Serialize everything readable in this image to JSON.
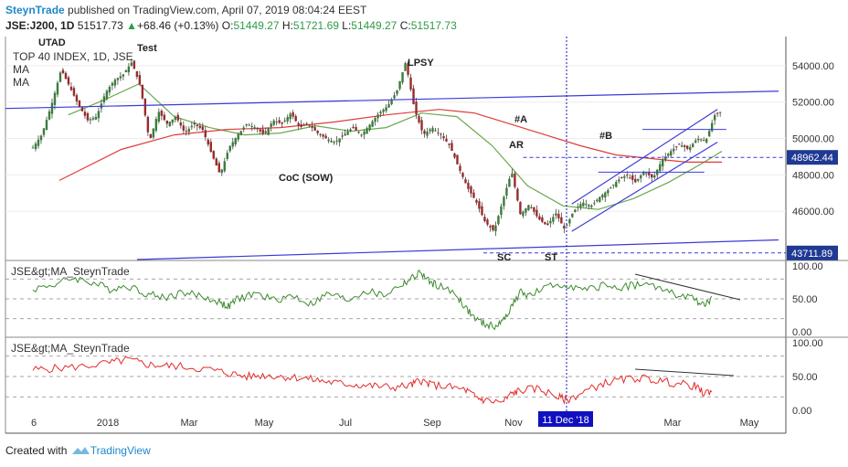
{
  "header": {
    "user": "SteynTrade",
    "published": "published on TradingView.com, April 07, 2019 08:04:24 EEST",
    "symbol": "JSE:J200, 1D",
    "last": "51517.73",
    "change": "+68.46 (+0.13%)",
    "o_label": "O:",
    "o_value": "51449.27",
    "h_label": "H:",
    "h_value": "51721.69",
    "l_label": "L:",
    "l_value": "51449.27",
    "c_label": "C:",
    "c_value": "51517.73"
  },
  "legend": {
    "title": "TOP 40 INDEX, 1D, JSE",
    "ma1": "MA",
    "ma2": "MA"
  },
  "footer": {
    "created_with": "Created with",
    "brand": "TradingView"
  },
  "colors": {
    "candle_up": "#3a7d3a",
    "candle_down": "#9b2a2a",
    "ma_fast": "#6aa84f",
    "ma_slow": "#e03c3c",
    "trendline": "#3b3bd6",
    "osc1": "#3d8a2e",
    "osc2": "#e52b2b",
    "cursor": "#1010c0",
    "price_box": "#1f3a93"
  },
  "chart_data": [
    {
      "type": "candlestick",
      "title": "TOP 40 INDEX, 1D, JSE",
      "y_ticks": [
        46000,
        48000,
        50000,
        52000,
        54000
      ],
      "y_tick_labels": [
        "46000.00",
        "48000.00",
        "50000.00",
        "52000.00",
        "54000.00"
      ],
      "ylim": [
        43300,
        55600
      ],
      "x_ticks": [
        "6",
        "2018",
        "Mar",
        "May",
        "Jul",
        "Sep",
        "Nov",
        "11 Dec '18",
        "Mar",
        "May"
      ],
      "price_labels": [
        "48962.44",
        "43711.89"
      ],
      "annotations": [
        "UTAD",
        "Test",
        "LPSY",
        "#A",
        "AR",
        "#B",
        "CoC (SOW)",
        "SC",
        "ST"
      ],
      "series": [
        {
          "name": "Price",
          "path": [
            [
              0,
              49500
            ],
            [
              10,
              50200
            ],
            [
              22,
              52000
            ],
            [
              32,
              53800
            ],
            [
              42,
              52800
            ],
            [
              52,
              51800
            ],
            [
              62,
              51000
            ],
            [
              72,
              51200
            ],
            [
              82,
              52500
            ],
            [
              92,
              53200
            ],
            [
              102,
              53500
            ],
            [
              112,
              54200
            ],
            [
              122,
              52800
            ],
            [
              132,
              49800
            ],
            [
              142,
              51500
            ],
            [
              152,
              50800
            ],
            [
              162,
              51200
            ],
            [
              172,
              50300
            ],
            [
              182,
              50800
            ],
            [
              192,
              50500
            ],
            [
              202,
              49200
            ],
            [
              212,
              48000
            ],
            [
              222,
              49500
            ],
            [
              232,
              50200
            ],
            [
              242,
              50800
            ],
            [
              252,
              50600
            ],
            [
              262,
              50200
            ],
            [
              272,
              51000
            ],
            [
              282,
              50800
            ],
            [
              292,
              51400
            ],
            [
              302,
              50600
            ],
            [
              312,
              50800
            ],
            [
              322,
              50300
            ],
            [
              332,
              50000
            ],
            [
              342,
              49800
            ],
            [
              352,
              50200
            ],
            [
              362,
              50600
            ],
            [
              372,
              50200
            ],
            [
              382,
              50800
            ],
            [
              392,
              51400
            ],
            [
              402,
              51800
            ],
            [
              412,
              52600
            ],
            [
              422,
              54200
            ],
            [
              432,
              51600
            ],
            [
              442,
              50200
            ],
            [
              452,
              50600
            ],
            [
              462,
              50200
            ],
            [
              472,
              49600
            ],
            [
              482,
              48400
            ],
            [
              492,
              47300
            ],
            [
              502,
              46500
            ],
            [
              512,
              45400
            ],
            [
              522,
              44900
            ],
            [
              532,
              46600
            ],
            [
              542,
              48200
            ],
            [
              552,
              45800
            ],
            [
              562,
              46400
            ],
            [
              572,
              45600
            ],
            [
              582,
              45200
            ],
            [
              592,
              45900
            ],
            [
              602,
              45000
            ],
            [
              612,
              46000
            ],
            [
              622,
              46500
            ],
            [
              632,
              46300
            ],
            [
              642,
              46800
            ],
            [
              652,
              47200
            ],
            [
              662,
              47700
            ],
            [
              672,
              48000
            ],
            [
              682,
              47600
            ],
            [
              692,
              48200
            ],
            [
              702,
              47800
            ],
            [
              712,
              48800
            ],
            [
              722,
              49300
            ],
            [
              732,
              49700
            ],
            [
              742,
              49400
            ],
            [
              752,
              50000
            ],
            [
              762,
              49900
            ],
            [
              772,
              51300
            ],
            [
              780,
              51500
            ]
          ]
        },
        {
          "name": "MA",
          "path": [
            [
              40,
              51300
            ],
            [
              80,
              52100
            ],
            [
              120,
              53000
            ],
            [
              160,
              51200
            ],
            [
              200,
              50600
            ],
            [
              240,
              50200
            ],
            [
              280,
              50300
            ],
            [
              320,
              50700
            ],
            [
              360,
              50400
            ],
            [
              400,
              50600
            ],
            [
              440,
              51400
            ],
            [
              480,
              51200
            ],
            [
              520,
              49600
            ],
            [
              560,
              47400
            ],
            [
              600,
              46300
            ],
            [
              640,
              46100
            ],
            [
              680,
              46700
            ],
            [
              720,
              47600
            ],
            [
              760,
              48700
            ],
            [
              780,
              49300
            ]
          ]
        },
        {
          "name": "MA",
          "path": [
            [
              30,
              47700
            ],
            [
              100,
              49400
            ],
            [
              160,
              50200
            ],
            [
              220,
              50500
            ],
            [
              280,
              50600
            ],
            [
              340,
              50900
            ],
            [
              400,
              51300
            ],
            [
              460,
              51600
            ],
            [
              500,
              51400
            ],
            [
              540,
              50800
            ],
            [
              580,
              50200
            ],
            [
              620,
              49600
            ],
            [
              660,
              49100
            ],
            [
              700,
              48900
            ],
            [
              740,
              48700
            ],
            [
              780,
              48700
            ]
          ]
        }
      ]
    },
    {
      "type": "line",
      "title": "JSE&gt;MA_SteynTrade",
      "y_ticks": [
        0,
        50,
        100
      ],
      "y_tick_labels": [
        "0.00",
        "50.00",
        "100.00"
      ],
      "ylim": [
        -8,
        108
      ],
      "series": [
        {
          "name": "JSE&gt;MA_SteynTrade",
          "path": [
            [
              36,
              65
            ],
            [
              60,
              72
            ],
            [
              80,
              82
            ],
            [
              100,
              75
            ],
            [
              120,
              65
            ],
            [
              140,
              70
            ],
            [
              160,
              58
            ],
            [
              180,
              52
            ],
            [
              200,
              60
            ],
            [
              220,
              54
            ],
            [
              240,
              45
            ],
            [
              250,
              38
            ],
            [
              260,
              50
            ],
            [
              280,
              58
            ],
            [
              300,
              48
            ],
            [
              320,
              55
            ],
            [
              340,
              42
            ],
            [
              360,
              58
            ],
            [
              380,
              48
            ],
            [
              400,
              62
            ],
            [
              420,
              55
            ],
            [
              440,
              72
            ],
            [
              450,
              80
            ],
            [
              460,
              90
            ],
            [
              470,
              75
            ],
            [
              480,
              70
            ],
            [
              500,
              55
            ],
            [
              510,
              35
            ],
            [
              520,
              20
            ],
            [
              530,
              12
            ],
            [
              540,
              8
            ],
            [
              550,
              15
            ],
            [
              560,
              40
            ],
            [
              570,
              60
            ],
            [
              580,
              55
            ],
            [
              600,
              68
            ],
            [
              620,
              72
            ],
            [
              640,
              62
            ],
            [
              660,
              70
            ],
            [
              680,
              68
            ],
            [
              700,
              72
            ],
            [
              720,
              68
            ],
            [
              740,
              55
            ],
            [
              760,
              50
            ],
            [
              770,
              40
            ],
            [
              780,
              50
            ]
          ]
        }
      ]
    },
    {
      "type": "line",
      "title": "JSE&gt;MA_SteynTrade",
      "y_ticks": [
        0,
        50,
        100
      ],
      "y_tick_labels": [
        "0.00",
        "50.00",
        "100.00"
      ],
      "ylim": [
        -8,
        108
      ],
      "series": [
        {
          "name": "JSE&gt;MA_SteynTrade",
          "path": [
            [
              36,
              60
            ],
            [
              60,
              62
            ],
            [
              90,
              65
            ],
            [
              120,
              70
            ],
            [
              140,
              75
            ],
            [
              160,
              68
            ],
            [
              180,
              66
            ],
            [
              200,
              65
            ],
            [
              230,
              60
            ],
            [
              250,
              55
            ],
            [
              270,
              50
            ],
            [
              290,
              52
            ],
            [
              310,
              50
            ],
            [
              330,
              48
            ],
            [
              350,
              44
            ],
            [
              370,
              40
            ],
            [
              390,
              38
            ],
            [
              410,
              36
            ],
            [
              430,
              34
            ],
            [
              450,
              37
            ],
            [
              460,
              45
            ],
            [
              470,
              38
            ],
            [
              490,
              35
            ],
            [
              510,
              30
            ],
            [
              520,
              20
            ],
            [
              530,
              15
            ],
            [
              550,
              12
            ],
            [
              560,
              25
            ],
            [
              570,
              30
            ],
            [
              590,
              32
            ],
            [
              610,
              20
            ],
            [
              620,
              15
            ],
            [
              640,
              28
            ],
            [
              660,
              40
            ],
            [
              680,
              45
            ],
            [
              700,
              48
            ],
            [
              720,
              44
            ],
            [
              740,
              40
            ],
            [
              760,
              36
            ],
            [
              770,
              25
            ],
            [
              780,
              30
            ]
          ]
        }
      ]
    }
  ]
}
